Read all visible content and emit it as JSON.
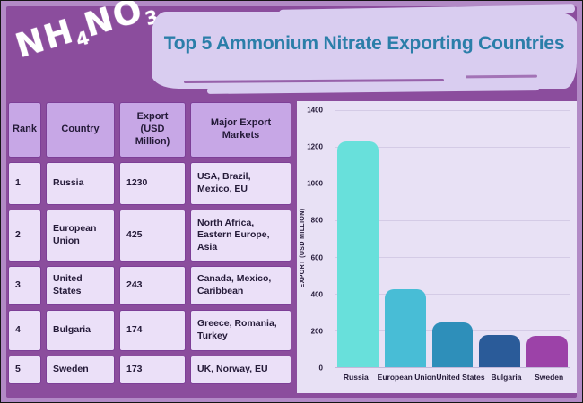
{
  "logo": {
    "part1": "NH",
    "sub1": "4",
    "part2": "NO",
    "sub2": "3"
  },
  "banner": {
    "title": "Top 5 Ammonium Nitrate Exporting Countries"
  },
  "table": {
    "headers": [
      "Rank",
      "Country",
      "Export (USD Million)",
      "Major Export Markets"
    ],
    "rows": [
      {
        "rank": "1",
        "country": "Russia",
        "export": "1230",
        "markets": "USA, Brazil, Mexico, EU"
      },
      {
        "rank": "2",
        "country": "European Union",
        "export": "425",
        "markets": "North Africa, Eastern Europe, Asia"
      },
      {
        "rank": "3",
        "country": "United States",
        "export": "243",
        "markets": "Canada, Mexico, Caribbean"
      },
      {
        "rank": "4",
        "country": "Bulgaria",
        "export": "174",
        "markets": "Greece, Romania, Turkey"
      },
      {
        "rank": "5",
        "country": "Sweden",
        "export": "173",
        "markets": "UK, Norway, EU"
      }
    ]
  },
  "chart_data": {
    "type": "bar",
    "categories": [
      "Russia",
      "European Union",
      "United States",
      "Bulgaria",
      "Sweden"
    ],
    "values": [
      1230,
      425,
      243,
      174,
      173
    ],
    "title": "",
    "xlabel": "",
    "ylabel": "EXPORT (USD MILLION)",
    "ylim": [
      0,
      1400
    ],
    "yticks": [
      0,
      200,
      400,
      600,
      800,
      1000,
      1200,
      1400
    ],
    "bar_colors": [
      "#68E0DB",
      "#48BDD6",
      "#2E8FBA",
      "#2A5B99",
      "#9C42A8"
    ],
    "grid": true,
    "legend": false
  },
  "colors": {
    "frame": "#B28AC6",
    "background": "#8B4D9D",
    "banner_bg": "#D9CDF0",
    "title_text": "#2B7EA9",
    "table_header_bg": "#C7A7E6",
    "table_cell_bg": "#EBE0F8",
    "chart_bg": "#E8E1F5",
    "text_dark": "#241A38",
    "logo_text": "#FFFFFF"
  }
}
